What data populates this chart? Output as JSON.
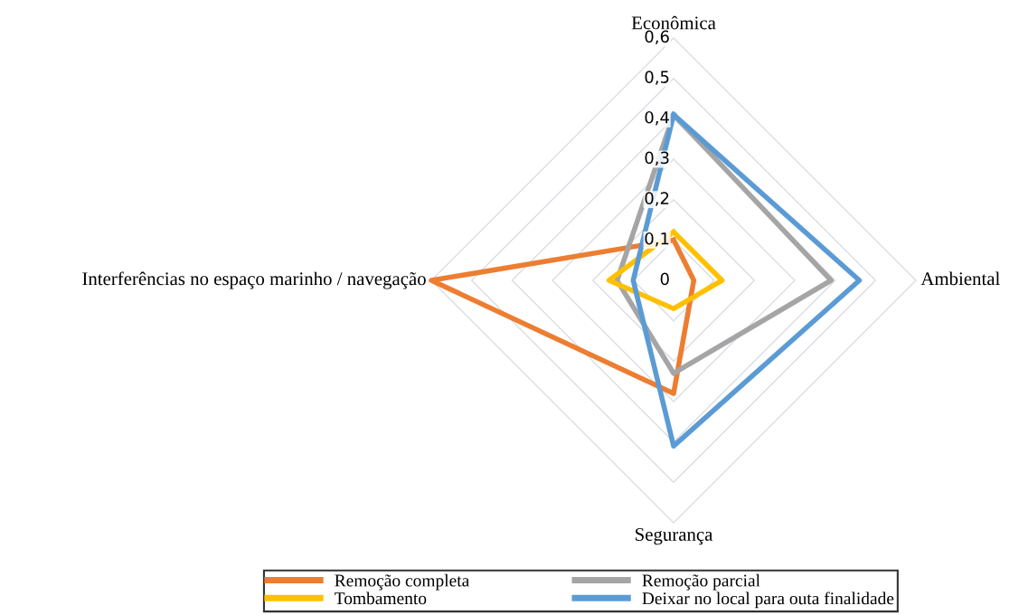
{
  "chart_data": {
    "type": "radar",
    "categories": [
      "Econômica",
      "Ambiental",
      "Segurança",
      "Interferências no espaço marinho / navegação"
    ],
    "ylim": [
      0,
      0.6
    ],
    "yticks": [
      {
        "value": 0,
        "label": "0"
      },
      {
        "value": 0.1,
        "label": "0,1"
      },
      {
        "value": 0.2,
        "label": "0,2"
      },
      {
        "value": 0.3,
        "label": "0,3"
      },
      {
        "value": 0.4,
        "label": "0,4"
      },
      {
        "value": 0.5,
        "label": "0,5"
      },
      {
        "value": 0.6,
        "label": "0,6"
      }
    ],
    "grid": true,
    "legend": "bottom",
    "series": [
      {
        "name": "Remoção completa",
        "color": "#ed7d31",
        "values": [
          0.1,
          0.05,
          0.28,
          0.6
        ]
      },
      {
        "name": "Remoção parcial",
        "color": "#a5a5a5",
        "values": [
          0.41,
          0.39,
          0.23,
          0.14
        ]
      },
      {
        "name": "Tombamento",
        "color": "#ffc000",
        "values": [
          0.12,
          0.12,
          0.07,
          0.16
        ]
      },
      {
        "name": "Deixar no local para outa finalidade",
        "color": "#5b9bd5",
        "values": [
          0.41,
          0.46,
          0.41,
          0.1
        ]
      }
    ]
  }
}
